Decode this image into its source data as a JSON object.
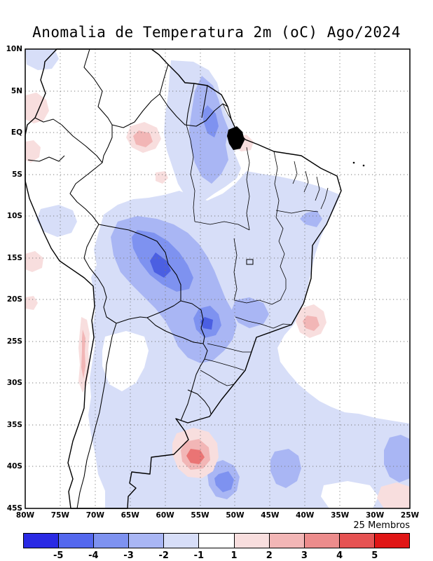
{
  "title": "Anomalia de Temperatura 2m (oC) Ago/2024",
  "map": {
    "lat_ticks": [
      "10N",
      "5N",
      "EQ",
      "5S",
      "10S",
      "15S",
      "20S",
      "25S",
      "30S",
      "35S",
      "40S",
      "45S"
    ],
    "lon_ticks": [
      "80W",
      "75W",
      "70W",
      "65W",
      "60W",
      "55W",
      "50W",
      "45W",
      "40W",
      "35W",
      "30W",
      "25W"
    ]
  },
  "legend": {
    "members_label": "25 Membros",
    "colorbar": {
      "tick_labels": [
        "-5",
        "-4",
        "-3",
        "-2",
        "-1",
        "1",
        "2",
        "3",
        "4",
        "5"
      ],
      "segment_colors": [
        "#2a2ae4",
        "#5468ee",
        "#7e92f0",
        "#a9b6f4",
        "#d7def8",
        "#ffffff",
        "#f8dede",
        "#f2b6b6",
        "#ec8c8c",
        "#e65252",
        "#e01616"
      ]
    }
  },
  "chart_data": {
    "type": "heatmap",
    "title": "Anomalia de Temperatura 2m (oC) Ago/2024",
    "variable": "2m temperature anomaly (ensemble mean)",
    "units": "oC",
    "period": "Ago/2024",
    "ensemble_label": "25 Membros",
    "x_axis": {
      "ticks": [
        "80W",
        "75W",
        "70W",
        "65W",
        "60W",
        "55W",
        "50W",
        "45W",
        "40W",
        "35W",
        "30W",
        "25W"
      ],
      "range_deg_lon": [
        -80,
        -25
      ]
    },
    "y_axis": {
      "ticks": [
        "10N",
        "5N",
        "EQ",
        "5S",
        "10S",
        "15S",
        "20S",
        "25S",
        "30S",
        "35S",
        "40S",
        "45S"
      ],
      "range_deg_lat": [
        10,
        -45
      ]
    },
    "grid": "dotted lines every 5 degrees",
    "legend_position": "bottom horizontal colorbar",
    "colorbar": {
      "levels": [
        -5,
        -4,
        -3,
        -2,
        -1,
        1,
        2,
        3,
        4,
        5
      ],
      "colors": [
        "#2a2ae4",
        "#5468ee",
        "#7e92f0",
        "#a9b6f4",
        "#d7def8",
        "#ffffff",
        "#f8dede",
        "#f2b6b6",
        "#ec8c8c",
        "#e65252",
        "#e01616"
      ]
    },
    "features": [
      {
        "region": "Guyana shield / NE Amazon (5N-5S, ~55W)",
        "sign": "negative",
        "approx_range_c": [
          -3,
          -1
        ]
      },
      {
        "region": "Rondonia / Mato Grosso (10S-15S, 60W)",
        "sign": "negative",
        "approx_range_c": [
          -5,
          -3
        ]
      },
      {
        "region": "most of central-south Brazil, Paraguay, N Argentina",
        "sign": "negative",
        "approx_range_c": [
          -2,
          -1
        ]
      },
      {
        "region": "S Paraguay / Mato Grosso do Sul core (~22S 56W)",
        "sign": "negative",
        "approx_range_c": [
          -4,
          -3
        ]
      },
      {
        "region": "S Atlantic (~42S 53W and ~40S 42W)",
        "sign": "negative",
        "approx_range_c": [
          -4,
          -2
        ]
      },
      {
        "region": "coastal central Chile (25S-33S)",
        "sign": "positive",
        "approx_range_c": [
          1,
          3
        ]
      },
      {
        "region": "NW Amazon near equator (~62W)",
        "sign": "positive",
        "approx_range_c": [
          1,
          2
        ]
      },
      {
        "region": "Atlantic off SE Brazil (~22S 39W)",
        "sign": "positive",
        "approx_range_c": [
          1,
          2
        ]
      },
      {
        "region": "S Atlantic (~40S 52W)",
        "sign": "positive",
        "approx_range_c": [
          1,
          3
        ]
      },
      {
        "region": "Pacific off Peru (15S-20S, 80W)",
        "sign": "positive",
        "approx_range_c": [
          1,
          2
        ]
      }
    ]
  }
}
